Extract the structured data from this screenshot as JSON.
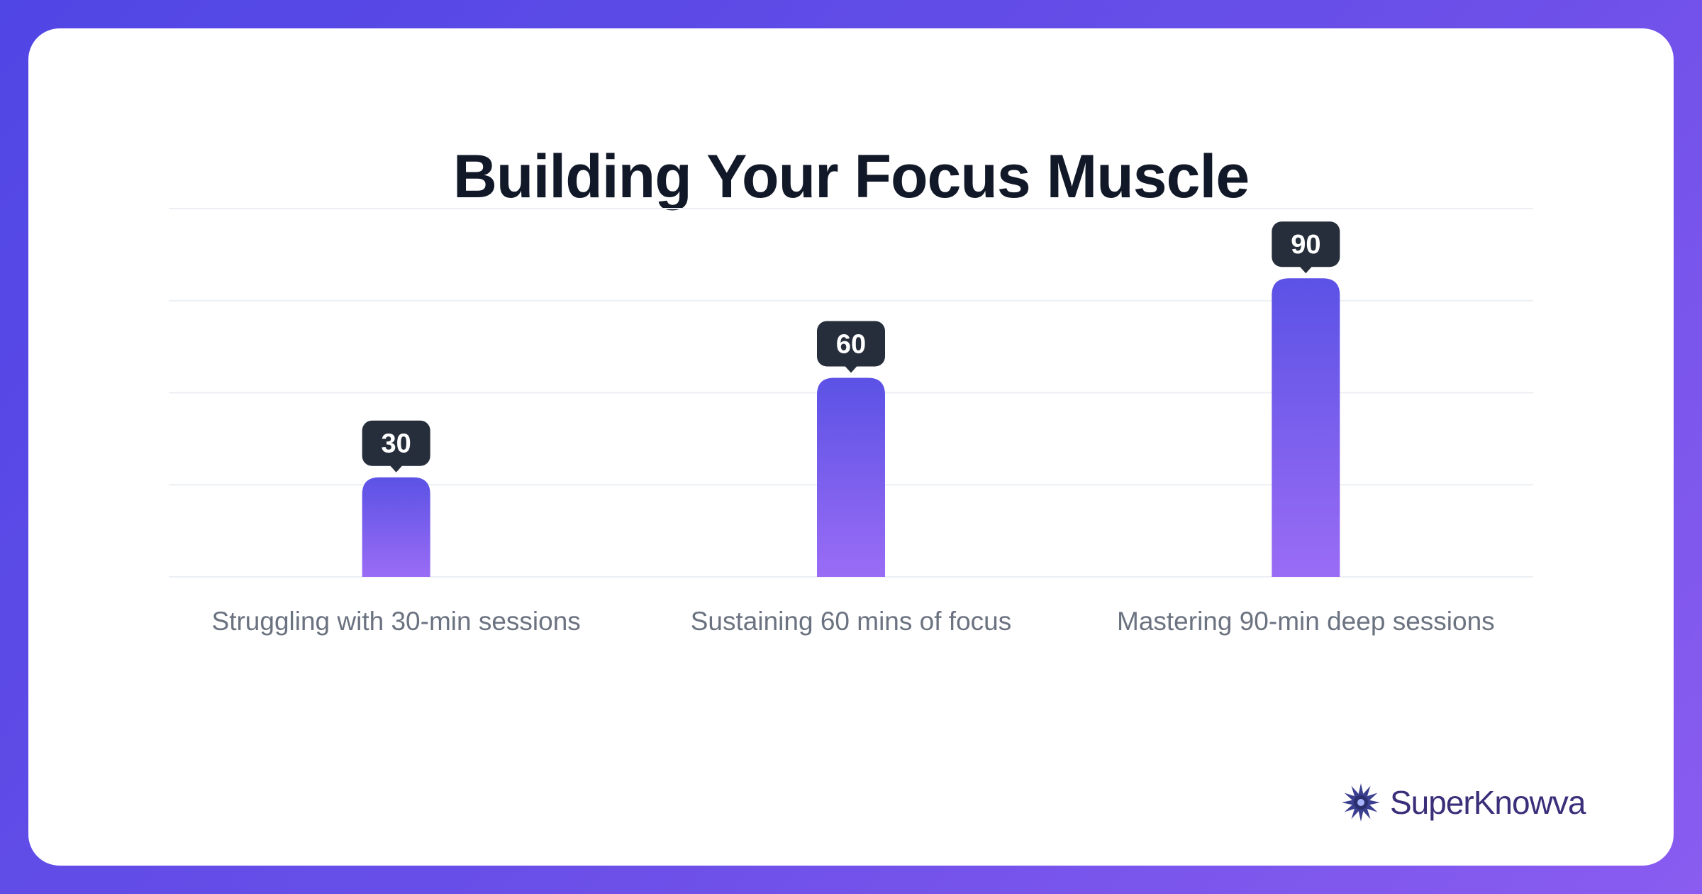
{
  "chart_data": {
    "type": "bar",
    "title": "Building Your Focus Muscle",
    "categories": [
      "Struggling with 30-min sessions",
      "Sustaining 60 mins of focus",
      "Mastering 90-min deep sessions"
    ],
    "values": [
      30,
      60,
      90
    ],
    "data_labels": [
      "30",
      "60",
      "90"
    ],
    "ylim": [
      0,
      111
    ],
    "grid": true,
    "colors": {
      "bar_top": "#5b52e5",
      "bar_bottom": "#9a6cf5",
      "label_bg": "#262e3b",
      "label_text": "#ffffff",
      "gridline": "#eceff3",
      "category_text": "#6b7280"
    }
  },
  "brand": {
    "name": "SuperKnowva",
    "logo_icon": "starburst-logo-icon"
  }
}
